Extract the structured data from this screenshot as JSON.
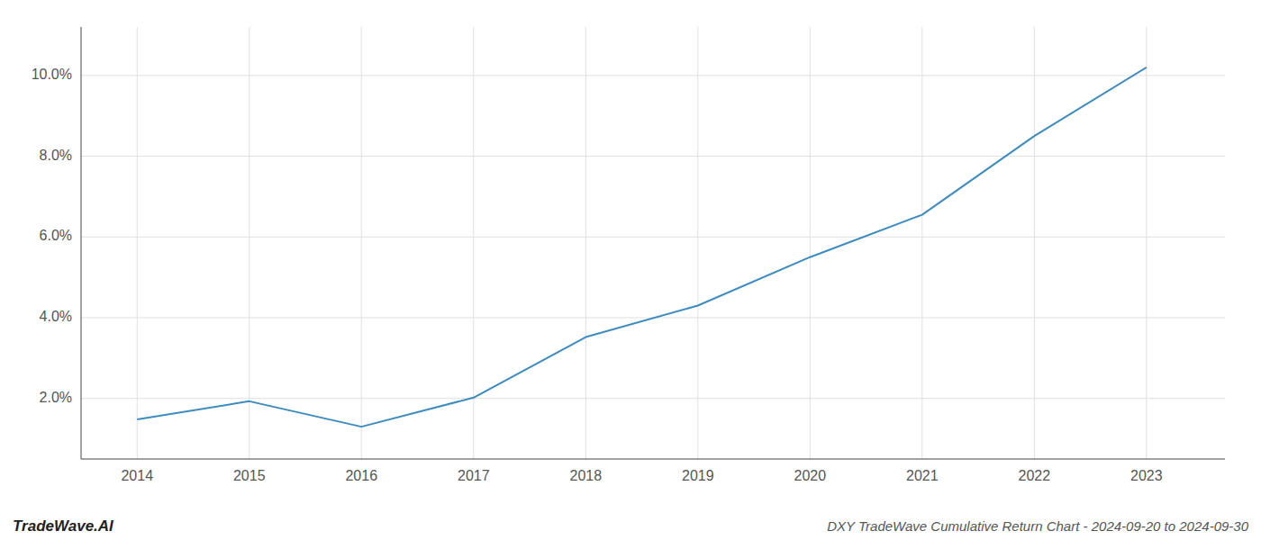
{
  "chart_data": {
    "type": "line",
    "title": "DXY TradeWave Cumulative Return Chart - 2024-09-20 to 2024-09-30",
    "annotations": [
      "TradeWave.AI"
    ],
    "x": [
      2014,
      2015,
      2016,
      2017,
      2018,
      2019,
      2020,
      2021,
      2022,
      2023
    ],
    "values": [
      1.48,
      1.93,
      1.3,
      2.02,
      3.52,
      4.3,
      5.5,
      6.55,
      8.5,
      10.2
    ],
    "color": "#3d8bbf",
    "xlim": [
      2013.5,
      2023.7
    ],
    "ylim": [
      0.5,
      11.2
    ],
    "xticks": [
      2014,
      2015,
      2016,
      2017,
      2018,
      2019,
      2020,
      2021,
      2022,
      2023
    ],
    "yticks": [
      {
        "value": 2.0,
        "label": "2.0%"
      },
      {
        "value": 4.0,
        "label": "4.0%"
      },
      {
        "value": 6.0,
        "label": "6.0%"
      },
      {
        "value": 8.0,
        "label": "8.0%"
      },
      {
        "value": 10.0,
        "label": "10.0%"
      }
    ],
    "grid": true
  }
}
